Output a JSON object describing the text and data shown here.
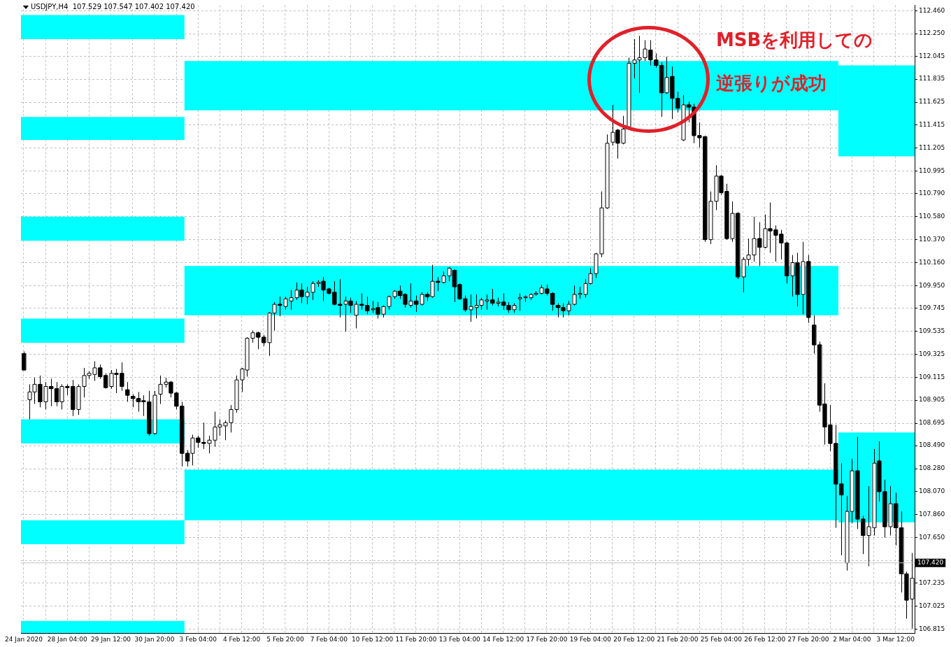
{
  "chart_data": {
    "type": "candlestick",
    "title": "USDJPY,H4  107.529 107.547 107.402 107.420",
    "color": "#000000",
    "grid": true,
    "colors": [
      "#000000",
      "#ffffff",
      "#ffffff",
      "#000000",
      "#ffffff",
      "#000000",
      "#000000",
      "#ffffff",
      "#000000",
      "#000000",
      "#ffffff",
      "#ffffff",
      "#ffffff",
      "#ffffff",
      "#000000",
      "#000000",
      "#ffffff",
      "#000000",
      "#000000",
      "#000000",
      "#000000",
      "#000000",
      "#000000",
      "#000000",
      "#ffffff",
      "#ffffff",
      "#ffffff",
      "#000000",
      "#000000",
      "#000000",
      "#000000",
      "#ffffff",
      "#000000",
      "#000000",
      "#ffffff",
      "#ffffff",
      "#ffffff",
      "#ffffff",
      "#ffffff",
      "#ffffff",
      "#ffffff",
      "#ffffff",
      "#ffffff",
      "#000000",
      "#000000",
      "#ffffff",
      "#ffffff",
      "#000000",
      "#ffffff",
      "#ffffff",
      "#ffffff",
      "#000000",
      "#ffffff",
      "#ffffff",
      "#ffffff",
      "#000000",
      "#000000",
      "#000000",
      "#000000",
      "#ffffff",
      "#000000",
      "#ffffff",
      "#000000",
      "#000000",
      "#ffffff",
      "#000000",
      "#ffffff",
      "#ffffff",
      "#ffffff",
      "#000000",
      "#000000",
      "#ffffff",
      "#000000",
      "#ffffff",
      "#000000",
      "#ffffff",
      "#000000",
      "#ffffff",
      "#ffffff",
      "#000000",
      "#000000",
      "#000000",
      "#ffffff",
      "#ffffff",
      "#ffffff",
      "#ffffff",
      "#000000",
      "#ffffff",
      "#000000",
      "#000000",
      "#ffffff",
      "#ffffff",
      "#ffffff",
      "#ffffff",
      "#ffffff",
      "#ffffff",
      "#000000",
      "#000000",
      "#000000",
      "#000000",
      "#ffffff",
      "#ffffff",
      "#ffffff",
      "#ffffff",
      "#ffffff",
      "#ffffff",
      "#ffffff",
      "#ffffff",
      "#ffffff",
      "#000000",
      "#ffffff",
      "#ffffff",
      "#ffffff",
      "#ffffff",
      "#ffffff",
      "#000000",
      "#000000",
      "#000000",
      "#ffffff",
      "#000000",
      "#000000",
      "#ffffff",
      "#000000",
      "#000000",
      "#000000",
      "#000000",
      "#ffffff",
      "#ffffff",
      "#000000",
      "#000000",
      "#ffffff",
      "#000000",
      "#ffffff",
      "#ffffff",
      "#ffffff",
      "#000000",
      "#ffffff",
      "#000000",
      "#000000",
      "#000000",
      "#000000",
      "#ffffff",
      "#000000",
      "#ffffff",
      "#000000",
      "#000000",
      "#000000",
      "#000000",
      "#000000",
      "#000000",
      "#000000",
      "#ffffff",
      "#ffffff",
      "#000000",
      "#000000",
      "#ffffff",
      "#ffffff",
      "#000000",
      "#000000",
      "#ffffff",
      "#000000",
      "#000000",
      "#000000",
      "#ffffff"
    ],
    "annotations": [
      "MSBを利用しての",
      "逆張りが成功"
    ],
    "categories": [
      "24 Jan 2020",
      null,
      null,
      null,
      null,
      null,
      null,
      null,
      "28 Jan 04:00",
      null,
      null,
      null,
      null,
      null,
      null,
      null,
      "29 Jan 12:00",
      null,
      null,
      null,
      null,
      null,
      null,
      null,
      "30 Jan 20:00",
      null,
      null,
      null,
      null,
      null,
      null,
      null,
      "3 Feb 04:00",
      null,
      null,
      null,
      null,
      null,
      null,
      null,
      "4 Feb 12:00",
      null,
      null,
      null,
      null,
      null,
      null,
      null,
      "5 Feb 20:00",
      null,
      null,
      null,
      null,
      null,
      null,
      null,
      "7 Feb 04:00",
      null,
      null,
      null,
      null,
      null,
      null,
      null,
      "10 Feb 12:00",
      null,
      null,
      null,
      null,
      null,
      null,
      null,
      "11 Feb 20:00",
      null,
      null,
      null,
      null,
      null,
      null,
      null,
      "13 Feb 04:00",
      null,
      null,
      null,
      null,
      null,
      null,
      null,
      "14 Feb 12:00",
      null,
      null,
      null,
      null,
      null,
      null,
      null,
      "17 Feb 20:00",
      null,
      null,
      null,
      null,
      null,
      null,
      null,
      "19 Feb 04:00",
      null,
      null,
      null,
      null,
      null,
      null,
      null,
      "20 Feb 12:00",
      null,
      null,
      null,
      null,
      null,
      null,
      null,
      "21 Feb 20:00",
      null,
      null,
      null,
      null,
      null,
      null,
      null,
      "25 Feb 04:00",
      null,
      null,
      null,
      null,
      null,
      null,
      null,
      "26 Feb 12:00",
      null,
      null,
      null,
      null,
      null,
      null,
      null,
      "27 Feb 20:00",
      null,
      null,
      null,
      null,
      null,
      null,
      null,
      "2 Mar 04:00",
      null,
      null,
      null,
      null,
      null,
      null,
      null,
      "3 Mar 12:00",
      null,
      null,
      null
    ],
    "ohlc": [
      [
        109.33,
        109.35,
        109.18,
        109.18
      ],
      [
        108.91,
        109.05,
        108.73,
        108.98
      ],
      [
        108.98,
        109.11,
        108.87,
        109.05
      ],
      [
        109.05,
        109.13,
        108.84,
        108.89
      ],
      [
        108.89,
        109.07,
        108.82,
        109.03
      ],
      [
        109.03,
        109.1,
        108.85,
        109.01
      ],
      [
        109.01,
        109.07,
        108.85,
        108.89
      ],
      [
        108.89,
        109.05,
        108.82,
        109.03
      ],
      [
        109.03,
        109.05,
        108.95,
        109.02
      ],
      [
        109.03,
        109.09,
        108.76,
        108.82
      ],
      [
        108.82,
        109.05,
        108.77,
        109.03
      ],
      [
        109.03,
        109.2,
        108.93,
        109.13
      ],
      [
        109.13,
        109.17,
        109.1,
        109.15
      ],
      [
        109.14,
        109.26,
        109.08,
        109.2
      ],
      [
        109.2,
        109.23,
        109.1,
        109.12
      ],
      [
        109.13,
        109.15,
        109.01,
        109.02
      ],
      [
        109.03,
        109.18,
        109.01,
        109.15
      ],
      [
        109.15,
        109.19,
        108.97,
        109.14
      ],
      [
        109.15,
        109.25,
        108.99,
        109.03
      ],
      [
        109,
        109.07,
        108.89,
        108.95
      ],
      [
        108.94,
        108.96,
        108.84,
        108.92
      ],
      [
        108.92,
        108.98,
        108.8,
        108.89
      ],
      [
        108.9,
        108.95,
        108.76,
        108.89
      ],
      [
        108.89,
        108.99,
        108.58,
        108.6
      ],
      [
        108.6,
        108.99,
        108.59,
        108.95
      ],
      [
        108.96,
        109.13,
        108.87,
        109.05
      ],
      [
        109.05,
        109.11,
        109.02,
        109.07
      ],
      [
        109.07,
        109.08,
        108.93,
        108.97
      ],
      [
        108.97,
        108.98,
        108.82,
        108.85
      ],
      [
        108.85,
        108.89,
        108.3,
        108.42
      ],
      [
        108.42,
        108.45,
        108.3,
        108.35
      ],
      [
        108.42,
        108.59,
        108.31,
        108.56
      ],
      [
        108.56,
        108.58,
        108.47,
        108.52
      ],
      [
        108.52,
        108.7,
        108.46,
        108.51
      ],
      [
        108.51,
        108.58,
        108.42,
        108.54
      ],
      [
        108.54,
        108.8,
        108.48,
        108.66
      ],
      [
        108.66,
        108.73,
        108.58,
        108.68
      ],
      [
        108.67,
        108.72,
        108.54,
        108.7
      ],
      [
        108.7,
        108.86,
        108.61,
        108.82
      ],
      [
        108.82,
        109.13,
        108.79,
        109.09
      ],
      [
        109.09,
        109.2,
        108.98,
        109.19
      ],
      [
        109.18,
        109.48,
        109.12,
        109.47
      ],
      [
        109.47,
        109.54,
        109.43,
        109.52
      ],
      [
        109.52,
        109.53,
        109.37,
        109.48
      ],
      [
        109.48,
        109.5,
        109.4,
        109.43
      ],
      [
        109.43,
        109.71,
        109.31,
        109.7
      ],
      [
        109.7,
        109.8,
        109.54,
        109.78
      ],
      [
        109.78,
        109.85,
        109.67,
        109.77
      ],
      [
        109.76,
        109.85,
        109.73,
        109.83
      ],
      [
        109.81,
        109.91,
        109.73,
        109.84
      ],
      [
        109.84,
        109.98,
        109.82,
        109.91
      ],
      [
        109.91,
        109.97,
        109.79,
        109.85
      ],
      [
        109.85,
        109.94,
        109.78,
        109.89
      ],
      [
        109.89,
        109.99,
        109.82,
        109.97
      ],
      [
        109.97,
        110,
        109.94,
        109.98
      ],
      [
        109.99,
        110.03,
        109.81,
        109.91
      ],
      [
        109.92,
        109.93,
        109.87,
        109.88
      ],
      [
        109.89,
        109.99,
        109.77,
        109.78
      ],
      [
        109.78,
        110.01,
        109.66,
        109.77
      ],
      [
        109.78,
        109.85,
        109.53,
        109.81
      ],
      [
        109.81,
        109.84,
        109.7,
        109.77
      ],
      [
        109.68,
        109.81,
        109.56,
        109.78
      ],
      [
        109.78,
        109.88,
        109.73,
        109.77
      ],
      [
        109.77,
        109.85,
        109.69,
        109.72
      ],
      [
        109.73,
        109.81,
        109.7,
        109.74
      ],
      [
        109.75,
        109.8,
        109.65,
        109.69
      ],
      [
        109.69,
        109.77,
        109.66,
        109.76
      ],
      [
        109.76,
        109.86,
        109.73,
        109.85
      ],
      [
        109.85,
        109.91,
        109.83,
        109.9
      ],
      [
        109.9,
        109.95,
        109.83,
        109.86
      ],
      [
        109.87,
        109.88,
        109.75,
        109.78
      ],
      [
        109.77,
        109.97,
        109.75,
        109.81
      ],
      [
        109.81,
        109.86,
        109.71,
        109.78
      ],
      [
        109.78,
        109.89,
        109.77,
        109.87
      ],
      [
        109.87,
        109.89,
        109.81,
        109.85
      ],
      [
        109.85,
        110.14,
        109.84,
        109.99
      ],
      [
        109.99,
        110.03,
        109.9,
        109.98
      ],
      [
        109.98,
        110.08,
        109.97,
        110.04
      ],
      [
        110.04,
        110.12,
        109.99,
        110.11
      ],
      [
        110.09,
        110.1,
        109.8,
        109.94
      ],
      [
        109.96,
        109.97,
        109.82,
        109.83
      ],
      [
        109.83,
        109.86,
        109.71,
        109.73
      ],
      [
        109.73,
        109.87,
        109.62,
        109.76
      ],
      [
        109.75,
        109.87,
        109.65,
        109.77
      ],
      [
        109.77,
        109.84,
        109.73,
        109.82
      ],
      [
        109.81,
        109.87,
        109.73,
        109.82
      ],
      [
        109.82,
        109.92,
        109.77,
        109.79
      ],
      [
        109.79,
        109.84,
        109.76,
        109.8
      ],
      [
        109.8,
        109.88,
        109.73,
        109.77
      ],
      [
        109.77,
        109.8,
        109.7,
        109.73
      ],
      [
        109.73,
        109.79,
        109.7,
        109.77
      ],
      [
        109.83,
        109.88,
        109.72,
        109.84
      ],
      [
        109.84,
        109.86,
        109.8,
        109.85
      ],
      [
        109.84,
        109.88,
        109.82,
        109.87
      ],
      [
        109.87,
        109.9,
        109.86,
        109.88
      ],
      [
        109.88,
        109.96,
        109.87,
        109.93
      ],
      [
        109.92,
        109.96,
        109.86,
        109.88
      ],
      [
        109.88,
        109.89,
        109.72,
        109.78
      ],
      [
        109.77,
        109.79,
        109.66,
        109.75
      ],
      [
        109.75,
        109.79,
        109.66,
        109.72
      ],
      [
        109.72,
        109.81,
        109.68,
        109.78
      ],
      [
        109.78,
        109.95,
        109.77,
        109.87
      ],
      [
        109.87,
        109.94,
        109.83,
        109.88
      ],
      [
        109.87,
        110.01,
        109.84,
        109.97
      ],
      [
        109.97,
        110.11,
        109.96,
        110.06
      ],
      [
        110.06,
        110.25,
        110.02,
        110.24
      ],
      [
        110.24,
        110.81,
        110.21,
        110.66
      ],
      [
        110.66,
        111.33,
        110.65,
        111.25
      ],
      [
        111.26,
        111.6,
        111.23,
        111.35
      ],
      [
        111.37,
        111.38,
        111.11,
        111.25
      ],
      [
        111.25,
        111.5,
        111.24,
        111.38
      ],
      [
        111.4,
        112.03,
        111.39,
        111.98
      ],
      [
        111.98,
        112.2,
        111.84,
        112.01
      ],
      [
        112.01,
        112.23,
        111.71,
        112.03
      ],
      [
        112.03,
        112.19,
        112,
        112.11
      ],
      [
        112.1,
        112.19,
        111.96,
        112.01
      ],
      [
        112.01,
        112.07,
        111.94,
        111.96
      ],
      [
        111.96,
        111.99,
        111.49,
        111.71
      ],
      [
        111.71,
        112.04,
        111.7,
        111.85
      ],
      [
        111.86,
        111.95,
        111.47,
        111.66
      ],
      [
        111.66,
        111.72,
        111.53,
        111.57
      ],
      [
        111.28,
        111.69,
        111.27,
        111.6
      ],
      [
        111.6,
        111.63,
        111.44,
        111.58
      ],
      [
        111.58,
        111.61,
        111.25,
        111.32
      ],
      [
        111.32,
        111.44,
        111.21,
        111.3
      ],
      [
        111.31,
        111.32,
        110.35,
        110.37
      ],
      [
        110.37,
        110.81,
        110.33,
        110.72
      ],
      [
        110.72,
        111.05,
        110.64,
        110.95
      ],
      [
        110.95,
        110.96,
        110.78,
        110.8
      ],
      [
        110.81,
        110.88,
        110.37,
        110.38
      ],
      [
        110.38,
        110.72,
        110.35,
        110.61
      ],
      [
        110.61,
        110.62,
        110.01,
        110.03
      ],
      [
        110.03,
        110.21,
        109.89,
        110.19
      ],
      [
        110.19,
        110.38,
        110.13,
        110.23
      ],
      [
        110.23,
        110.58,
        110.17,
        110.38
      ],
      [
        110.38,
        110.53,
        110.13,
        110.3
      ],
      [
        110.3,
        110.6,
        110.29,
        110.47
      ],
      [
        110.47,
        110.71,
        110.25,
        110.45
      ],
      [
        110.46,
        110.5,
        110.17,
        110.41
      ],
      [
        110.42,
        110.46,
        110.19,
        110.34
      ],
      [
        110.34,
        110.35,
        109.97,
        110.04
      ],
      [
        110.04,
        110.23,
        109.85,
        110.16
      ],
      [
        110.16,
        110.25,
        109.76,
        109.87
      ],
      [
        109.87,
        110.35,
        109.69,
        110.17
      ],
      [
        110.17,
        110.23,
        109.61,
        109.66
      ],
      [
        109.59,
        109.68,
        109.33,
        109.41
      ],
      [
        109.41,
        109.44,
        108.8,
        108.86
      ],
      [
        108.87,
        109.06,
        108.5,
        108.66
      ],
      [
        108.68,
        108.86,
        108.44,
        108.51
      ],
      [
        108.51,
        108.68,
        107.74,
        108.14
      ],
      [
        108.14,
        108.33,
        107.49,
        108.04
      ],
      [
        107.42,
        108.03,
        107.35,
        107.89
      ],
      [
        107.89,
        108.37,
        107.78,
        108.26
      ],
      [
        108.26,
        108.57,
        107.73,
        107.82
      ],
      [
        107.82,
        107.85,
        107.5,
        107.67
      ],
      [
        107.67,
        108.12,
        107.39,
        107.75
      ],
      [
        107.74,
        108.46,
        107.67,
        108.33
      ],
      [
        108.35,
        108.53,
        107.98,
        108.07
      ],
      [
        108.07,
        108.18,
        107.65,
        107.75
      ],
      [
        107.75,
        108.12,
        107.67,
        107.96
      ],
      [
        107.96,
        108.06,
        107.58,
        107.74
      ],
      [
        107.74,
        107.89,
        107.15,
        107.32
      ],
      [
        107.32,
        107.34,
        106.91,
        107.08
      ],
      [
        107.09,
        107.51,
        106.82,
        107.28
      ]
    ],
    "bands": [
      {
        "axis": "y",
        "from": 112.2,
        "to": 112.42,
        "color": "#00ffff"
      },
      {
        "axis": "y",
        "from": 111.28,
        "to": 111.49,
        "color": "#00ffff"
      },
      {
        "axis": "y",
        "from": 110.36,
        "to": 110.58,
        "color": "#00ffff"
      },
      {
        "axis": "y",
        "from": 109.43,
        "to": 109.65,
        "color": "#00ffff"
      },
      {
        "axis": "y",
        "from": 108.51,
        "to": 108.73,
        "color": "#00ffff"
      },
      {
        "axis": "y",
        "from": 107.59,
        "to": 107.81,
        "color": "#00ffff"
      },
      {
        "axis": "y",
        "from": 106.78,
        "to": 106.89,
        "color": "#00ffff"
      },
      {
        "axis": "y",
        "from": 111.55,
        "to": 112,
        "color": "#00ffff"
      },
      {
        "axis": "y",
        "from": 109.68,
        "to": 110.13,
        "color": "#00ffff"
      },
      {
        "axis": "y",
        "from": 107.81,
        "to": 108.27,
        "color": "#00ffff"
      },
      {
        "axis": "y",
        "from": 111.13,
        "to": 111.96,
        "color": "#00ffff"
      },
      {
        "axis": "y",
        "from": 107.79,
        "to": 108.61,
        "color": "#00ffff"
      }
    ],
    "ylim": [
      106.78,
      112.51
    ],
    "yticks": [
      {
        "value": 112.46,
        "label": "112.460"
      },
      {
        "value": 112.25,
        "label": "112.250"
      },
      112.045,
      111.835,
      111.625,
      111.415,
      111.205,
      110.995,
      {
        "value": 110.79,
        "label": "110.790"
      },
      {
        "value": 110.58,
        "label": "110.580"
      },
      {
        "value": 110.37,
        "label": "110.370"
      },
      {
        "value": 110.16,
        "label": "110.160"
      },
      {
        "value": 109.95,
        "label": "109.950"
      },
      109.745,
      109.535,
      109.325,
      109.115,
      108.905,
      108.695,
      {
        "value": 108.49,
        "label": "108.490"
      },
      {
        "value": 108.28,
        "label": "108.280"
      },
      {
        "value": 108.07,
        "label": "108.070"
      },
      {
        "value": 107.86,
        "label": "107.860"
      },
      {
        "value": 107.65,
        "label": "107.650"
      },
      {
        "value": 107.44,
        "label": null
      },
      107.235,
      107.025,
      106.815
    ],
    "ref_lines": [
      {
        "axis": "y",
        "value": 107.42,
        "label": "107.420",
        "color": "#c0c0c0"
      }
    ]
  }
}
